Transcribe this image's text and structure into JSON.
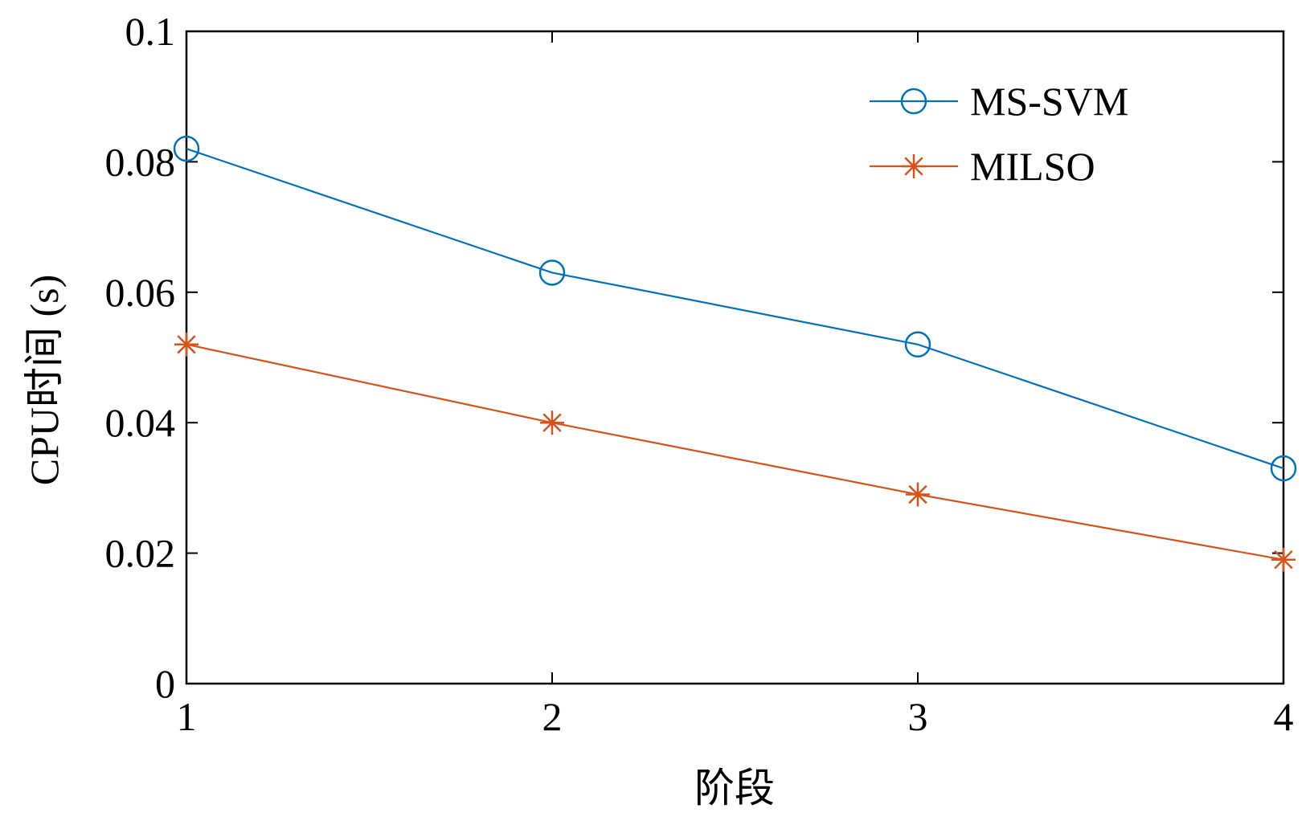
{
  "chart_data": {
    "type": "line",
    "xlabel": "阶段",
    "ylabel": "CPU时间 (s)",
    "x": [
      1,
      2,
      3,
      4
    ],
    "xlim": [
      1,
      4
    ],
    "ylim": [
      0,
      0.1
    ],
    "x_ticks": [
      "1",
      "2",
      "3",
      "4"
    ],
    "y_ticks": [
      "0",
      "0.02",
      "0.04",
      "0.06",
      "0.08",
      "0.1"
    ],
    "grid": false,
    "legend_position": "top-right",
    "series": [
      {
        "name": "MS-SVM",
        "values": [
          0.082,
          0.063,
          0.052,
          0.033
        ],
        "color": "#0072BD",
        "marker": "circle"
      },
      {
        "name": "MILSO",
        "values": [
          0.052,
          0.04,
          0.029,
          0.019
        ],
        "color": "#D95319",
        "marker": "asterisk"
      }
    ]
  }
}
